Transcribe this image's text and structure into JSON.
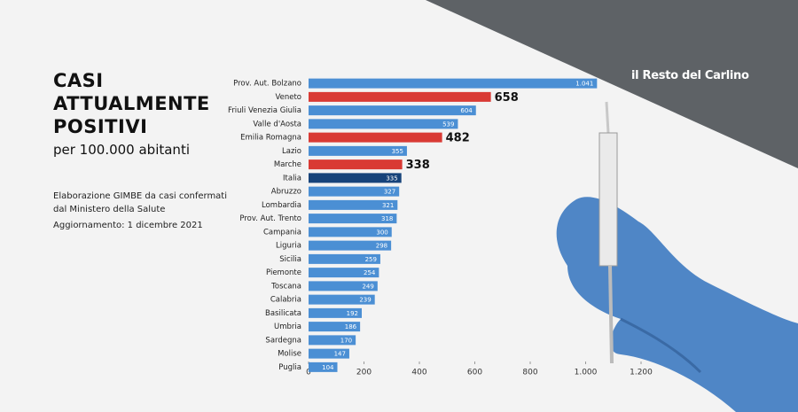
{
  "chart_data": {
    "type": "hbar",
    "title": "CASI ATTUALMENTE POSITIVI",
    "subtitle": "per 100.000 abitanti",
    "source": "Elaborazione GIMBE da casi confermati dal Ministero della Salute",
    "updated": "Aggiornamento: 1 dicembre 2021",
    "brand": "il Resto del Carlino",
    "categories": [
      "Prov. Aut. Bolzano",
      "Veneto",
      "Friuli Venezia Giulia",
      "Valle d'Aosta",
      "Emilia Romagna",
      "Lazio",
      "Marche",
      "Italia",
      "Abruzzo",
      "Lombardia",
      "Prov. Aut. Trento",
      "Campania",
      "Liguria",
      "Sicilia",
      "Piemonte",
      "Toscana",
      "Calabria",
      "Basilicata",
      "Umbria",
      "Sardegna",
      "Molise",
      "Puglia"
    ],
    "values": [
      1041,
      658,
      604,
      539,
      482,
      355,
      338,
      335,
      327,
      321,
      318,
      300,
      298,
      259,
      254,
      249,
      239,
      192,
      186,
      170,
      147,
      104
    ],
    "value_labels": [
      "1.041",
      "658",
      "604",
      "539",
      "482",
      "355",
      "338",
      "335",
      "327",
      "321",
      "318",
      "300",
      "298",
      "259",
      "254",
      "249",
      "239",
      "192",
      "186",
      "170",
      "147",
      "104"
    ],
    "colors": [
      "#4b8fd4",
      "#d93a34",
      "#4b8fd4",
      "#4b8fd4",
      "#d93a34",
      "#4b8fd4",
      "#d93a34",
      "#17437a",
      "#4b8fd4",
      "#4b8fd4",
      "#4b8fd4",
      "#4b8fd4",
      "#4b8fd4",
      "#4b8fd4",
      "#4b8fd4",
      "#4b8fd4",
      "#4b8fd4",
      "#4b8fd4",
      "#4b8fd4",
      "#4b8fd4",
      "#4b8fd4",
      "#4b8fd4"
    ],
    "highlight_color": "#d93a34",
    "xlim": [
      0,
      1200
    ],
    "xticks": [
      0,
      200,
      400,
      600,
      800,
      {
        "value": 1000,
        "label": "1.000"
      },
      {
        "value": 1200,
        "label": "1.200"
      }
    ]
  }
}
